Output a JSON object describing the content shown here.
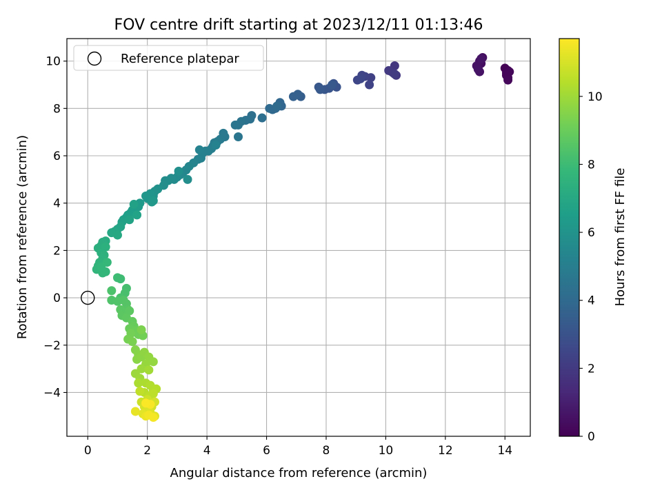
{
  "chart_data": {
    "type": "scatter",
    "title": "FOV centre drift starting at 2023/12/11 01:13:46",
    "xlabel": "Angular distance from reference (arcmin)",
    "ylabel": "Rotation from reference (arcmin)",
    "xlim": [
      -0.7,
      14.85
    ],
    "ylim": [
      -5.85,
      10.95
    ],
    "x_ticks": [
      0,
      2,
      4,
      6,
      8,
      10,
      12,
      14
    ],
    "y_ticks": [
      -4,
      -2,
      0,
      2,
      4,
      6,
      8,
      10
    ],
    "grid": true,
    "legend": {
      "placement": "top-left",
      "entries": [
        "Reference platepar"
      ]
    },
    "reference_point": {
      "label": "Reference platepar",
      "x": 0,
      "y": 0,
      "marker": "hollow-circle"
    },
    "colorbar": {
      "label": "Hours from first FF file",
      "range": [
        0,
        11.7
      ],
      "ticks": [
        0,
        2,
        4,
        6,
        8,
        10
      ],
      "colormap": "viridis"
    },
    "colormap_stops": [
      "#440154",
      "#482878",
      "#3e4989",
      "#31688e",
      "#26828e",
      "#1f9e89",
      "#35b779",
      "#6ece58",
      "#b5de2b",
      "#fde725"
    ],
    "series": [
      {
        "name": "",
        "points": [
          [
            14.1,
            9.6,
            0.0
          ],
          [
            14.0,
            9.7,
            0.05
          ],
          [
            14.05,
            9.5,
            0.1
          ],
          [
            14.1,
            9.3,
            0.12
          ],
          [
            14.15,
            9.55,
            0.15
          ],
          [
            14.05,
            9.4,
            0.18
          ],
          [
            14.1,
            9.2,
            0.2
          ],
          [
            13.1,
            9.7,
            0.35
          ],
          [
            13.2,
            9.9,
            0.4
          ],
          [
            13.25,
            10.15,
            0.45
          ],
          [
            13.15,
            10.0,
            0.5
          ],
          [
            13.05,
            9.8,
            0.55
          ],
          [
            13.15,
            9.55,
            0.6
          ],
          [
            13.1,
            9.65,
            0.62
          ],
          [
            13.2,
            10.1,
            0.65
          ],
          [
            10.3,
            9.8,
            1.8
          ],
          [
            10.2,
            9.55,
            1.85
          ],
          [
            10.35,
            9.4,
            1.9
          ],
          [
            10.25,
            9.5,
            1.95
          ],
          [
            10.1,
            9.6,
            2.0
          ],
          [
            10.3,
            9.45,
            2.05
          ],
          [
            9.5,
            9.3,
            2.3
          ],
          [
            9.45,
            9.0,
            2.35
          ],
          [
            9.3,
            9.35,
            2.4
          ],
          [
            9.2,
            9.4,
            2.45
          ],
          [
            9.05,
            9.2,
            2.5
          ],
          [
            9.15,
            9.25,
            2.55
          ],
          [
            8.35,
            8.9,
            3.0
          ],
          [
            8.25,
            9.05,
            3.05
          ],
          [
            8.1,
            8.85,
            3.1
          ],
          [
            7.95,
            8.8,
            3.15
          ],
          [
            7.75,
            8.9,
            3.2
          ],
          [
            7.8,
            8.8,
            3.25
          ],
          [
            8.2,
            9.0,
            3.28
          ],
          [
            7.15,
            8.5,
            3.5
          ],
          [
            7.05,
            8.6,
            3.55
          ],
          [
            6.9,
            8.5,
            3.6
          ],
          [
            6.5,
            8.1,
            3.8
          ],
          [
            6.45,
            8.25,
            3.85
          ],
          [
            6.3,
            8.0,
            3.9
          ],
          [
            6.2,
            7.95,
            3.95
          ],
          [
            6.1,
            8.0,
            4.0
          ],
          [
            6.35,
            8.1,
            4.05
          ],
          [
            5.85,
            7.6,
            4.2
          ],
          [
            5.5,
            7.7,
            4.3
          ],
          [
            5.45,
            7.55,
            4.35
          ],
          [
            5.3,
            7.5,
            4.4
          ],
          [
            5.15,
            7.45,
            4.45
          ],
          [
            5.05,
            7.3,
            4.5
          ],
          [
            4.95,
            7.3,
            4.55
          ],
          [
            5.05,
            6.8,
            4.6
          ],
          [
            4.6,
            6.8,
            4.7
          ],
          [
            4.55,
            6.95,
            4.75
          ],
          [
            4.45,
            6.7,
            4.8
          ],
          [
            4.35,
            6.6,
            4.85
          ],
          [
            4.25,
            6.55,
            4.9
          ],
          [
            4.2,
            6.4,
            4.95
          ],
          [
            4.15,
            6.3,
            5.0
          ],
          [
            4.05,
            6.2,
            5.05
          ],
          [
            3.95,
            6.2,
            5.1
          ],
          [
            3.85,
            6.1,
            5.12
          ],
          [
            3.8,
            5.9,
            5.15
          ],
          [
            3.7,
            5.85,
            5.18
          ],
          [
            3.75,
            6.25,
            5.2
          ],
          [
            4.3,
            6.45,
            5.22
          ],
          [
            3.55,
            5.7,
            5.3
          ],
          [
            3.4,
            5.55,
            5.35
          ],
          [
            3.3,
            5.4,
            5.4
          ],
          [
            3.2,
            5.3,
            5.45
          ],
          [
            3.1,
            5.2,
            5.5
          ],
          [
            3.0,
            5.1,
            5.55
          ],
          [
            2.9,
            5.0,
            5.6
          ],
          [
            2.8,
            5.05,
            5.65
          ],
          [
            2.7,
            4.95,
            5.7
          ],
          [
            2.6,
            4.95,
            5.72
          ],
          [
            2.55,
            4.75,
            5.75
          ],
          [
            3.35,
            5.0,
            5.78
          ],
          [
            3.05,
            5.35,
            5.8
          ],
          [
            2.35,
            4.6,
            5.9
          ],
          [
            2.25,
            4.5,
            5.95
          ],
          [
            2.2,
            4.3,
            6.0
          ],
          [
            2.1,
            4.4,
            6.05
          ],
          [
            2.0,
            4.2,
            6.1
          ],
          [
            1.95,
            4.3,
            6.15
          ],
          [
            2.2,
            4.1,
            6.2
          ],
          [
            2.15,
            4.05,
            6.22
          ],
          [
            1.75,
            4.0,
            6.3
          ],
          [
            1.7,
            3.85,
            6.35
          ],
          [
            1.6,
            3.8,
            6.4
          ],
          [
            1.5,
            3.7,
            6.45
          ],
          [
            1.45,
            3.6,
            6.5
          ],
          [
            1.35,
            3.5,
            6.55
          ],
          [
            1.3,
            3.4,
            6.58
          ],
          [
            1.2,
            3.3,
            6.6
          ],
          [
            1.15,
            3.2,
            6.65
          ],
          [
            1.55,
            3.95,
            6.68
          ],
          [
            1.65,
            3.5,
            6.7
          ],
          [
            1.4,
            3.3,
            6.72
          ],
          [
            1.1,
            3.0,
            6.8
          ],
          [
            1.0,
            2.9,
            6.85
          ],
          [
            0.9,
            2.8,
            6.9
          ],
          [
            0.8,
            2.75,
            6.95
          ],
          [
            1.0,
            2.65,
            7.0
          ],
          [
            0.6,
            2.4,
            7.2
          ],
          [
            0.5,
            2.35,
            7.25
          ],
          [
            0.45,
            2.2,
            7.3
          ],
          [
            0.35,
            2.1,
            7.35
          ],
          [
            0.6,
            2.15,
            7.38
          ],
          [
            0.45,
            1.9,
            7.4
          ],
          [
            0.55,
            1.8,
            7.45
          ],
          [
            0.5,
            1.65,
            7.5
          ],
          [
            0.4,
            1.5,
            7.55
          ],
          [
            0.35,
            1.35,
            7.6
          ],
          [
            0.3,
            1.2,
            7.65
          ],
          [
            0.5,
            1.05,
            7.7
          ],
          [
            0.6,
            1.1,
            7.72
          ],
          [
            0.45,
            1.3,
            7.75
          ],
          [
            0.65,
            1.5,
            7.78
          ],
          [
            1.0,
            0.85,
            8.0
          ],
          [
            1.1,
            0.8,
            8.05
          ],
          [
            1.3,
            0.4,
            8.2
          ],
          [
            1.25,
            0.2,
            8.25
          ],
          [
            1.1,
            0.0,
            8.3
          ],
          [
            0.8,
            0.3,
            8.35
          ],
          [
            0.8,
            -0.1,
            8.4
          ],
          [
            1.0,
            -0.15,
            8.45
          ],
          [
            1.2,
            -0.1,
            8.5
          ],
          [
            1.3,
            -0.25,
            8.55
          ],
          [
            1.35,
            -0.5,
            8.6
          ],
          [
            1.1,
            -0.5,
            8.65
          ],
          [
            1.15,
            -0.75,
            8.7
          ],
          [
            1.4,
            -0.55,
            8.72
          ],
          [
            1.3,
            -0.85,
            8.75
          ],
          [
            1.5,
            -1.0,
            8.9
          ],
          [
            1.55,
            -1.2,
            8.95
          ],
          [
            1.4,
            -1.3,
            9.0
          ],
          [
            1.6,
            -1.4,
            9.05
          ],
          [
            1.7,
            -1.55,
            9.1
          ],
          [
            1.85,
            -1.6,
            9.15
          ],
          [
            1.45,
            -1.5,
            9.2
          ],
          [
            1.35,
            -1.75,
            9.25
          ],
          [
            1.5,
            -1.85,
            9.3
          ],
          [
            1.8,
            -1.35,
            9.35
          ],
          [
            1.6,
            -2.2,
            9.5
          ],
          [
            1.7,
            -2.4,
            9.55
          ],
          [
            1.65,
            -2.6,
            9.6
          ],
          [
            1.8,
            -2.5,
            9.65
          ],
          [
            1.9,
            -2.3,
            9.7
          ],
          [
            2.05,
            -2.5,
            9.75
          ],
          [
            2.2,
            -2.7,
            9.8
          ],
          [
            1.95,
            -2.8,
            9.85
          ],
          [
            1.8,
            -3.0,
            9.9
          ],
          [
            1.6,
            -3.2,
            9.95
          ],
          [
            1.75,
            -3.4,
            10.0
          ],
          [
            2.05,
            -3.05,
            10.05
          ],
          [
            1.7,
            -3.6,
            10.2
          ],
          [
            1.95,
            -3.6,
            10.25
          ],
          [
            2.1,
            -3.7,
            10.3
          ],
          [
            2.2,
            -3.9,
            10.35
          ],
          [
            2.3,
            -3.85,
            10.4
          ],
          [
            1.9,
            -4.0,
            10.45
          ],
          [
            2.05,
            -4.15,
            10.5
          ],
          [
            2.2,
            -4.05,
            10.55
          ],
          [
            1.75,
            -3.95,
            10.6
          ],
          [
            1.8,
            -4.4,
            10.8
          ],
          [
            2.0,
            -4.3,
            10.85
          ],
          [
            2.15,
            -4.6,
            10.9
          ],
          [
            2.25,
            -4.4,
            10.95
          ],
          [
            1.9,
            -4.6,
            11.0
          ],
          [
            2.0,
            -4.75,
            11.05
          ],
          [
            2.1,
            -4.85,
            11.1
          ],
          [
            2.25,
            -5.0,
            11.15
          ],
          [
            1.85,
            -4.9,
            11.2
          ],
          [
            1.6,
            -4.8,
            11.3
          ],
          [
            1.95,
            -5.0,
            11.4
          ],
          [
            2.05,
            -4.95,
            11.5
          ],
          [
            2.2,
            -5.05,
            11.55
          ],
          [
            2.1,
            -4.5,
            11.6
          ],
          [
            1.95,
            -4.45,
            11.65
          ]
        ]
      }
    ]
  }
}
